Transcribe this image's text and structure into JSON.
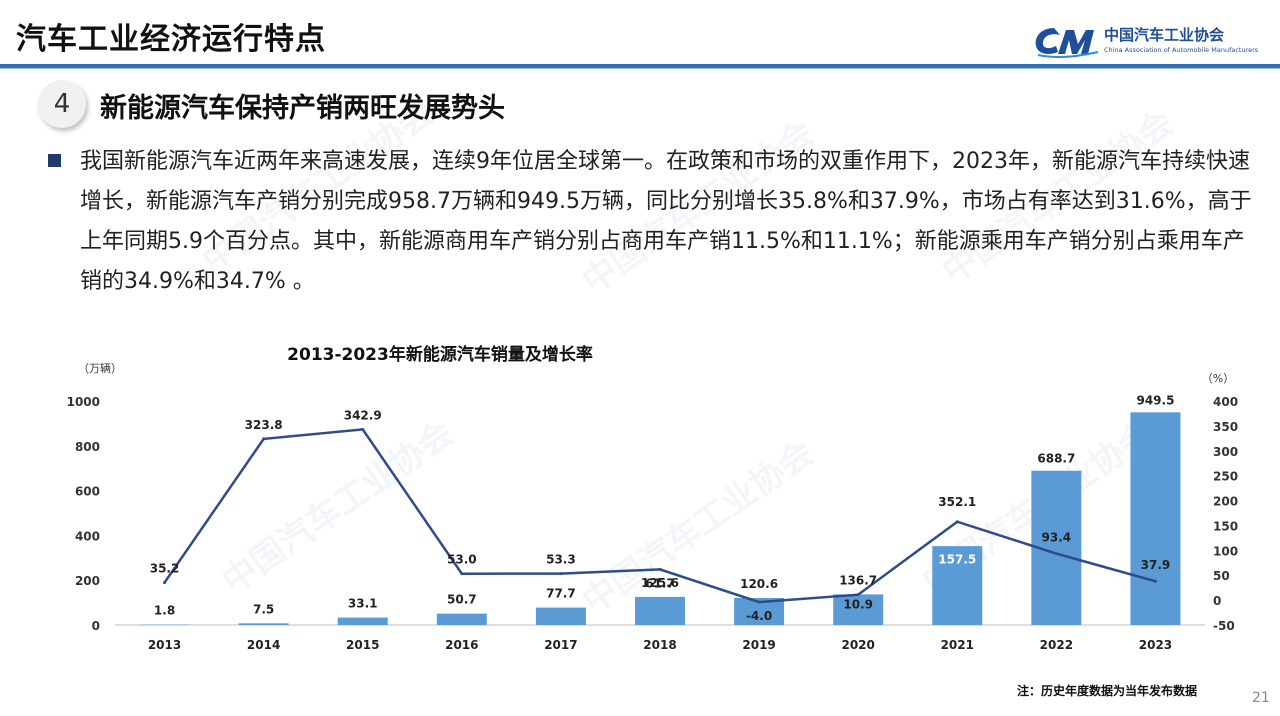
{
  "header": {
    "title": "汽车工业经济运行特点",
    "logo_cn": "中国汽车工业协会",
    "logo_en": "China Association of Automobile Manufacturers"
  },
  "section": {
    "number": "4",
    "title": "新能源汽车保持产销两旺发展势头"
  },
  "body": {
    "paragraph": "我国新能源汽车近两年来高速发展，连续9年位居全球第一。在政策和市场的双重作用下，2023年，新能源汽车持续快速增长，新能源汽车产销分别完成958.7万辆和949.5万辆，同比分别增长35.8%和37.9%，市场占有率达到31.6%，高于上年同期5.9个百分点。其中，新能源商用车产销分别占商用车产销11.5%和11.1%；新能源乘用车产销分别占乘用车产销的34.9%和34.7% 。"
  },
  "chart_data": {
    "type": "bar",
    "title": "2013-2023年新能源汽车销量及增长率",
    "ylabel": "（万辆）",
    "y2label": "（%）",
    "categories": [
      "2013",
      "2014",
      "2015",
      "2016",
      "2017",
      "2018",
      "2019",
      "2020",
      "2021",
      "2022",
      "2023"
    ],
    "ylim": [
      0,
      1000
    ],
    "yticks": [
      "0",
      "200",
      "400",
      "600",
      "800",
      "1000"
    ],
    "y2lim": [
      -50,
      400
    ],
    "y2ticks": [
      "-50",
      "0",
      "50",
      "100",
      "150",
      "200",
      "250",
      "300",
      "350",
      "400"
    ],
    "grid": false,
    "legend": "none",
    "series": [
      {
        "kind": "bar",
        "color": "#5b9bd5",
        "values": [
          1.8,
          7.5,
          33.1,
          50.7,
          77.7,
          125.6,
          120.6,
          136.7,
          352.1,
          688.7,
          949.5
        ],
        "labels": [
          "1.8",
          "7.5",
          "33.1",
          "50.7",
          "77.7",
          "125.6",
          "120.6",
          "136.7",
          "352.1",
          "688.7",
          "949.5"
        ]
      },
      {
        "kind": "line",
        "color": "#2f4b88",
        "axis": "right",
        "values": [
          35.2,
          323.8,
          342.9,
          53.0,
          53.3,
          61.7,
          -4.0,
          10.9,
          157.5,
          93.4,
          37.9
        ],
        "labels": [
          "35.2",
          "323.8",
          "342.9",
          "53.0",
          "53.3",
          "61.7",
          "-4.0",
          "10.9",
          "157.5",
          "93.4",
          "37.9"
        ]
      }
    ]
  },
  "footnote": "注：历史年度数据为当年发布数据",
  "page_number": "21",
  "watermark": "中国汽车工业协会"
}
